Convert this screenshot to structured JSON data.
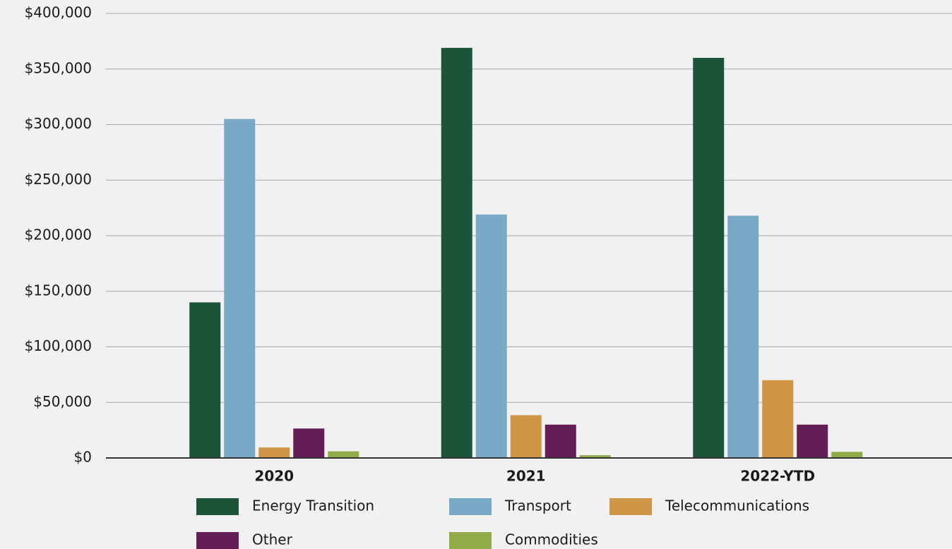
{
  "chart_data": {
    "type": "bar",
    "categories": [
      "2020",
      "2021",
      "2022-YTD"
    ],
    "series": [
      {
        "name": "Energy Transition",
        "color": "#1b5439",
        "values": [
          140000,
          369000,
          360000
        ]
      },
      {
        "name": "Transport",
        "color": "#78a9c7",
        "values": [
          305000,
          219000,
          218000
        ]
      },
      {
        "name": "Telecommunications",
        "color": "#cf9648",
        "values": [
          9500,
          38500,
          70000
        ]
      },
      {
        "name": "Other",
        "color": "#631e55",
        "values": [
          26500,
          30000,
          30000
        ]
      },
      {
        "name": "Commodities",
        "color": "#93aa48",
        "values": [
          6000,
          2500,
          5500
        ]
      }
    ],
    "ylim": [
      0,
      400000
    ],
    "yticks": [
      {
        "value": 0,
        "label": "$0"
      },
      {
        "value": 50000,
        "label": "$50,000"
      },
      {
        "value": 100000,
        "label": "$100,000"
      },
      {
        "value": 150000,
        "label": "$150,000"
      },
      {
        "value": 200000,
        "label": "$200,000"
      },
      {
        "value": 250000,
        "label": "$250,000"
      },
      {
        "value": 300000,
        "label": "$300,000"
      },
      {
        "value": 350000,
        "label": "$350,000"
      },
      {
        "value": 400000,
        "label": "$400,000"
      }
    ],
    "grid": true,
    "legend": "bottom"
  }
}
